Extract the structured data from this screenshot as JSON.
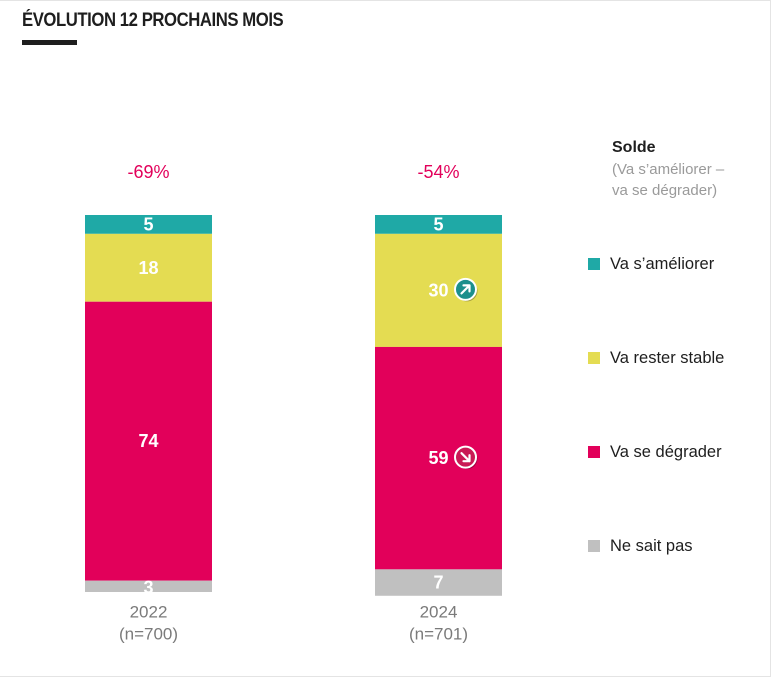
{
  "title": "ÉVOLUTION 12 PROCHAINS MOIS",
  "legend": {
    "title": "Solde",
    "subtitle_line1": "(Va s’améliorer –",
    "subtitle_line2": "va se dégrader)"
  },
  "colors": {
    "improve": "#1fa9a6",
    "stable": "#e4dc52",
    "degrade": "#e2005a",
    "unknown": "#c0c0c0",
    "solde_text": "#e2005a",
    "axis_text": "#7a7a7a"
  },
  "chart_data": {
    "type": "bar",
    "stacked": true,
    "title": "ÉVOLUTION 12 PROCHAINS MOIS",
    "categories": [
      "2022",
      "2024"
    ],
    "category_subtitles": [
      "(n=700)",
      "(n=701)"
    ],
    "solde": [
      "-69%",
      "-54%"
    ],
    "series": [
      {
        "name": "Va s’améliorer",
        "key": "improve",
        "values": [
          5,
          5
        ]
      },
      {
        "name": "Va rester stable",
        "key": "stable",
        "values": [
          18,
          30
        ]
      },
      {
        "name": "Va se dégrader",
        "key": "degrade",
        "values": [
          74,
          59
        ]
      },
      {
        "name": "Ne sait pas",
        "key": "unknown",
        "values": [
          3,
          7
        ]
      }
    ],
    "trend_markers": [
      {
        "category": "2024",
        "series": "Va rester stable",
        "direction": "up"
      },
      {
        "category": "2024",
        "series": "Va se dégrader",
        "direction": "down"
      }
    ],
    "ylim": [
      0,
      100
    ],
    "legend_position": "right"
  }
}
